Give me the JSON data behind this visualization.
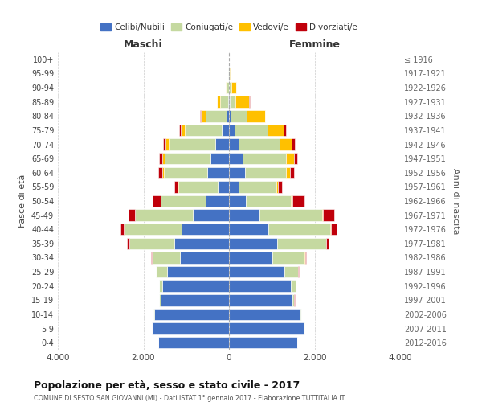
{
  "age_groups": [
    "100+",
    "95-99",
    "90-94",
    "85-89",
    "80-84",
    "75-79",
    "70-74",
    "65-69",
    "60-64",
    "55-59",
    "50-54",
    "45-49",
    "40-44",
    "35-39",
    "30-34",
    "25-29",
    "20-24",
    "15-19",
    "10-14",
    "5-9",
    "0-4"
  ],
  "birth_years": [
    "≤ 1916",
    "1917-1921",
    "1922-1926",
    "1927-1931",
    "1932-1936",
    "1937-1941",
    "1942-1946",
    "1947-1951",
    "1952-1956",
    "1957-1961",
    "1962-1966",
    "1967-1971",
    "1972-1976",
    "1977-1981",
    "1982-1986",
    "1987-1991",
    "1992-1996",
    "1997-2001",
    "2002-2006",
    "2007-2011",
    "2012-2016"
  ],
  "male": {
    "celibi": [
      2,
      4,
      8,
      25,
      60,
      160,
      320,
      430,
      500,
      270,
      550,
      850,
      1100,
      1280,
      1150,
      1450,
      1550,
      1600,
      1750,
      1800,
      1650
    ],
    "coniugati": [
      2,
      8,
      45,
      180,
      480,
      880,
      1080,
      1080,
      1030,
      920,
      1050,
      1350,
      1350,
      1050,
      650,
      250,
      80,
      35,
      8,
      4,
      4
    ],
    "vedovi": [
      1,
      4,
      18,
      70,
      120,
      90,
      75,
      45,
      25,
      8,
      4,
      4,
      4,
      4,
      4,
      4,
      4,
      4,
      0,
      0,
      0
    ],
    "divorziati": [
      0,
      0,
      2,
      4,
      8,
      25,
      60,
      75,
      90,
      75,
      180,
      140,
      90,
      45,
      25,
      8,
      4,
      2,
      0,
      0,
      0
    ]
  },
  "female": {
    "nubili": [
      2,
      4,
      8,
      18,
      45,
      130,
      220,
      320,
      370,
      230,
      400,
      720,
      920,
      1120,
      1020,
      1300,
      1450,
      1480,
      1680,
      1750,
      1600
    ],
    "coniugate": [
      2,
      8,
      45,
      130,
      370,
      770,
      970,
      1020,
      970,
      870,
      1050,
      1450,
      1450,
      1150,
      750,
      320,
      100,
      45,
      12,
      6,
      4
    ],
    "vedove": [
      4,
      28,
      120,
      330,
      430,
      380,
      280,
      190,
      90,
      45,
      28,
      18,
      12,
      8,
      8,
      4,
      4,
      4,
      0,
      0,
      0
    ],
    "divorziate": [
      0,
      0,
      2,
      4,
      8,
      45,
      75,
      75,
      90,
      90,
      280,
      280,
      140,
      55,
      18,
      8,
      4,
      2,
      0,
      0,
      0
    ]
  },
  "colors": {
    "celibi": "#4472c4",
    "coniugati": "#c5d9a0",
    "vedovi": "#ffc000",
    "divorziati": "#c0000b"
  },
  "xlim": 4000,
  "title": "Popolazione per età, sesso e stato civile - 2017",
  "subtitle": "COMUNE DI SESTO SAN GIOVANNI (MI) - Dati ISTAT 1° gennaio 2017 - Elaborazione TUTTITALIA.IT",
  "ylabel_left": "Fasce di età",
  "ylabel_right": "Anni di nascita",
  "xlabel_left": "Maschi",
  "xlabel_right": "Femmine",
  "bg_color": "#ffffff",
  "grid_color": "#cccccc"
}
